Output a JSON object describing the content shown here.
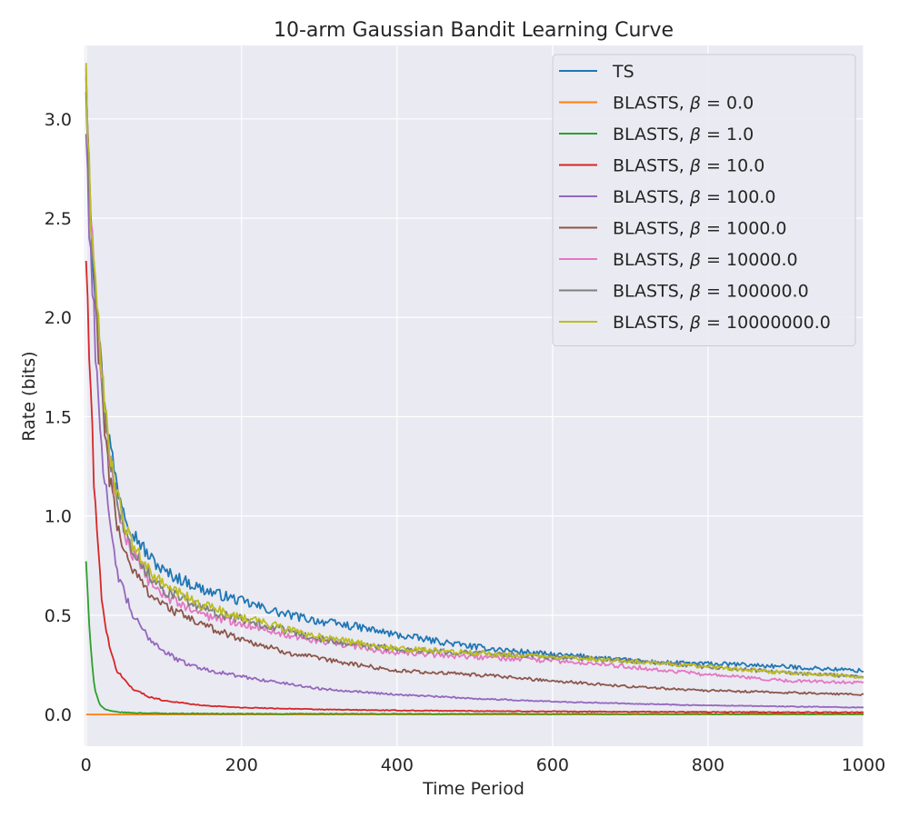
{
  "chart_data": {
    "type": "line",
    "title": "10-arm Gaussian Bandit Learning Curve",
    "xlabel": "Time Period",
    "ylabel": "Rate (bits)",
    "xlim": [
      -2,
      1000
    ],
    "ylim": [
      -0.16,
      3.37
    ],
    "xticks": [
      0,
      200,
      400,
      600,
      800,
      1000
    ],
    "xtick_labels": [
      "0",
      "200",
      "400",
      "600",
      "800",
      "1000"
    ],
    "yticks": [
      0.0,
      0.5,
      1.0,
      1.5,
      2.0,
      2.5,
      3.0
    ],
    "ytick_labels": [
      "0.0",
      "0.5",
      "1.0",
      "1.5",
      "2.0",
      "2.5",
      "3.0"
    ],
    "grid": true,
    "legend_position": "top-right",
    "series": [
      {
        "name": "TS",
        "legend_prefix": "TS",
        "beta": "",
        "color": "#1f77b4",
        "x": [
          0,
          5,
          10,
          20,
          30,
          40,
          50,
          60,
          80,
          100,
          150,
          200,
          250,
          300,
          350,
          400,
          450,
          500,
          550,
          600,
          650,
          700,
          750,
          800,
          850,
          900,
          950,
          1000
        ],
        "values": [
          3.2,
          2.6,
          2.25,
          1.72,
          1.38,
          1.15,
          1.02,
          0.92,
          0.8,
          0.72,
          0.63,
          0.57,
          0.51,
          0.47,
          0.44,
          0.4,
          0.37,
          0.34,
          0.32,
          0.3,
          0.29,
          0.27,
          0.26,
          0.255,
          0.25,
          0.24,
          0.23,
          0.22
        ]
      },
      {
        "name": "BLASTS, β = 0.0",
        "legend_prefix": "BLASTS, ",
        "beta": "0.0",
        "color": "#ff7f0e",
        "x": [
          0,
          1000
        ],
        "values": [
          0.0,
          0.0
        ]
      },
      {
        "name": "BLASTS, β = 1.0",
        "legend_prefix": "BLASTS, ",
        "beta": "1.0",
        "color": "#2ca02c",
        "x": [
          0,
          2,
          4,
          6,
          8,
          10,
          12,
          15,
          18,
          20,
          25,
          30,
          40,
          60,
          100,
          200,
          1000
        ],
        "values": [
          0.78,
          0.6,
          0.45,
          0.33,
          0.24,
          0.17,
          0.12,
          0.08,
          0.05,
          0.04,
          0.025,
          0.018,
          0.012,
          0.008,
          0.005,
          0.003,
          0.002
        ]
      },
      {
        "name": "BLASTS, β = 10.0",
        "legend_prefix": "BLASTS, ",
        "beta": "10.0",
        "color": "#d62728",
        "x": [
          0,
          5,
          10,
          15,
          20,
          25,
          30,
          40,
          50,
          60,
          80,
          100,
          150,
          200,
          300,
          400,
          600,
          800,
          1000
        ],
        "values": [
          2.3,
          1.7,
          1.2,
          0.85,
          0.6,
          0.45,
          0.33,
          0.22,
          0.17,
          0.13,
          0.09,
          0.07,
          0.045,
          0.035,
          0.025,
          0.02,
          0.015,
          0.012,
          0.01
        ]
      },
      {
        "name": "BLASTS, β = 100.0",
        "legend_prefix": "BLASTS, ",
        "beta": "100.0",
        "color": "#9467bd",
        "x": [
          0,
          5,
          10,
          15,
          20,
          30,
          40,
          50,
          60,
          70,
          80,
          100,
          120,
          150,
          200,
          250,
          300,
          400,
          500,
          600,
          700,
          800,
          900,
          1000
        ],
        "values": [
          2.93,
          2.4,
          2.0,
          1.65,
          1.35,
          0.95,
          0.72,
          0.6,
          0.5,
          0.44,
          0.39,
          0.32,
          0.27,
          0.23,
          0.19,
          0.16,
          0.13,
          0.1,
          0.08,
          0.065,
          0.055,
          0.045,
          0.04,
          0.035
        ]
      },
      {
        "name": "BLASTS, β = 1000.0",
        "legend_prefix": "BLASTS, ",
        "beta": "1000.0",
        "color": "#8c564b",
        "x": [
          0,
          5,
          10,
          20,
          30,
          40,
          50,
          60,
          80,
          100,
          150,
          200,
          250,
          300,
          350,
          400,
          500,
          600,
          700,
          800,
          900,
          1000
        ],
        "values": [
          3.2,
          2.6,
          2.2,
          1.6,
          1.2,
          0.95,
          0.82,
          0.73,
          0.62,
          0.55,
          0.45,
          0.38,
          0.32,
          0.28,
          0.25,
          0.22,
          0.2,
          0.17,
          0.14,
          0.12,
          0.11,
          0.1
        ]
      },
      {
        "name": "BLASTS, β = 10000.0",
        "legend_prefix": "BLASTS, ",
        "beta": "10000.0",
        "color": "#e377c2",
        "x": [
          0,
          5,
          10,
          20,
          30,
          40,
          50,
          60,
          80,
          100,
          150,
          200,
          250,
          300,
          400,
          500,
          600,
          700,
          800,
          900,
          1000
        ],
        "values": [
          3.2,
          2.6,
          2.2,
          1.7,
          1.3,
          1.05,
          0.9,
          0.8,
          0.68,
          0.6,
          0.5,
          0.46,
          0.41,
          0.37,
          0.31,
          0.29,
          0.27,
          0.24,
          0.2,
          0.17,
          0.16
        ]
      },
      {
        "name": "BLASTS, β = 100000.0",
        "legend_prefix": "BLASTS, ",
        "beta": "100000.0",
        "color": "#7f7f7f",
        "x": [
          0,
          5,
          10,
          20,
          30,
          40,
          50,
          60,
          80,
          100,
          150,
          200,
          250,
          300,
          400,
          500,
          600,
          700,
          800,
          900,
          1000
        ],
        "values": [
          3.22,
          2.62,
          2.22,
          1.72,
          1.33,
          1.08,
          0.93,
          0.83,
          0.71,
          0.63,
          0.53,
          0.48,
          0.43,
          0.38,
          0.33,
          0.31,
          0.29,
          0.27,
          0.24,
          0.21,
          0.19
        ]
      },
      {
        "name": "BLASTS, β = 10000000.0",
        "legend_prefix": "BLASTS, ",
        "beta": "10000000.0",
        "color": "#bcbd22",
        "x": [
          0,
          5,
          10,
          20,
          30,
          40,
          50,
          60,
          80,
          100,
          150,
          200,
          250,
          300,
          400,
          500,
          600,
          700,
          800,
          900,
          1000
        ],
        "values": [
          3.23,
          2.63,
          2.23,
          1.73,
          1.35,
          1.1,
          0.95,
          0.85,
          0.73,
          0.65,
          0.55,
          0.49,
          0.44,
          0.39,
          0.33,
          0.31,
          0.29,
          0.27,
          0.24,
          0.21,
          0.19
        ]
      }
    ]
  }
}
